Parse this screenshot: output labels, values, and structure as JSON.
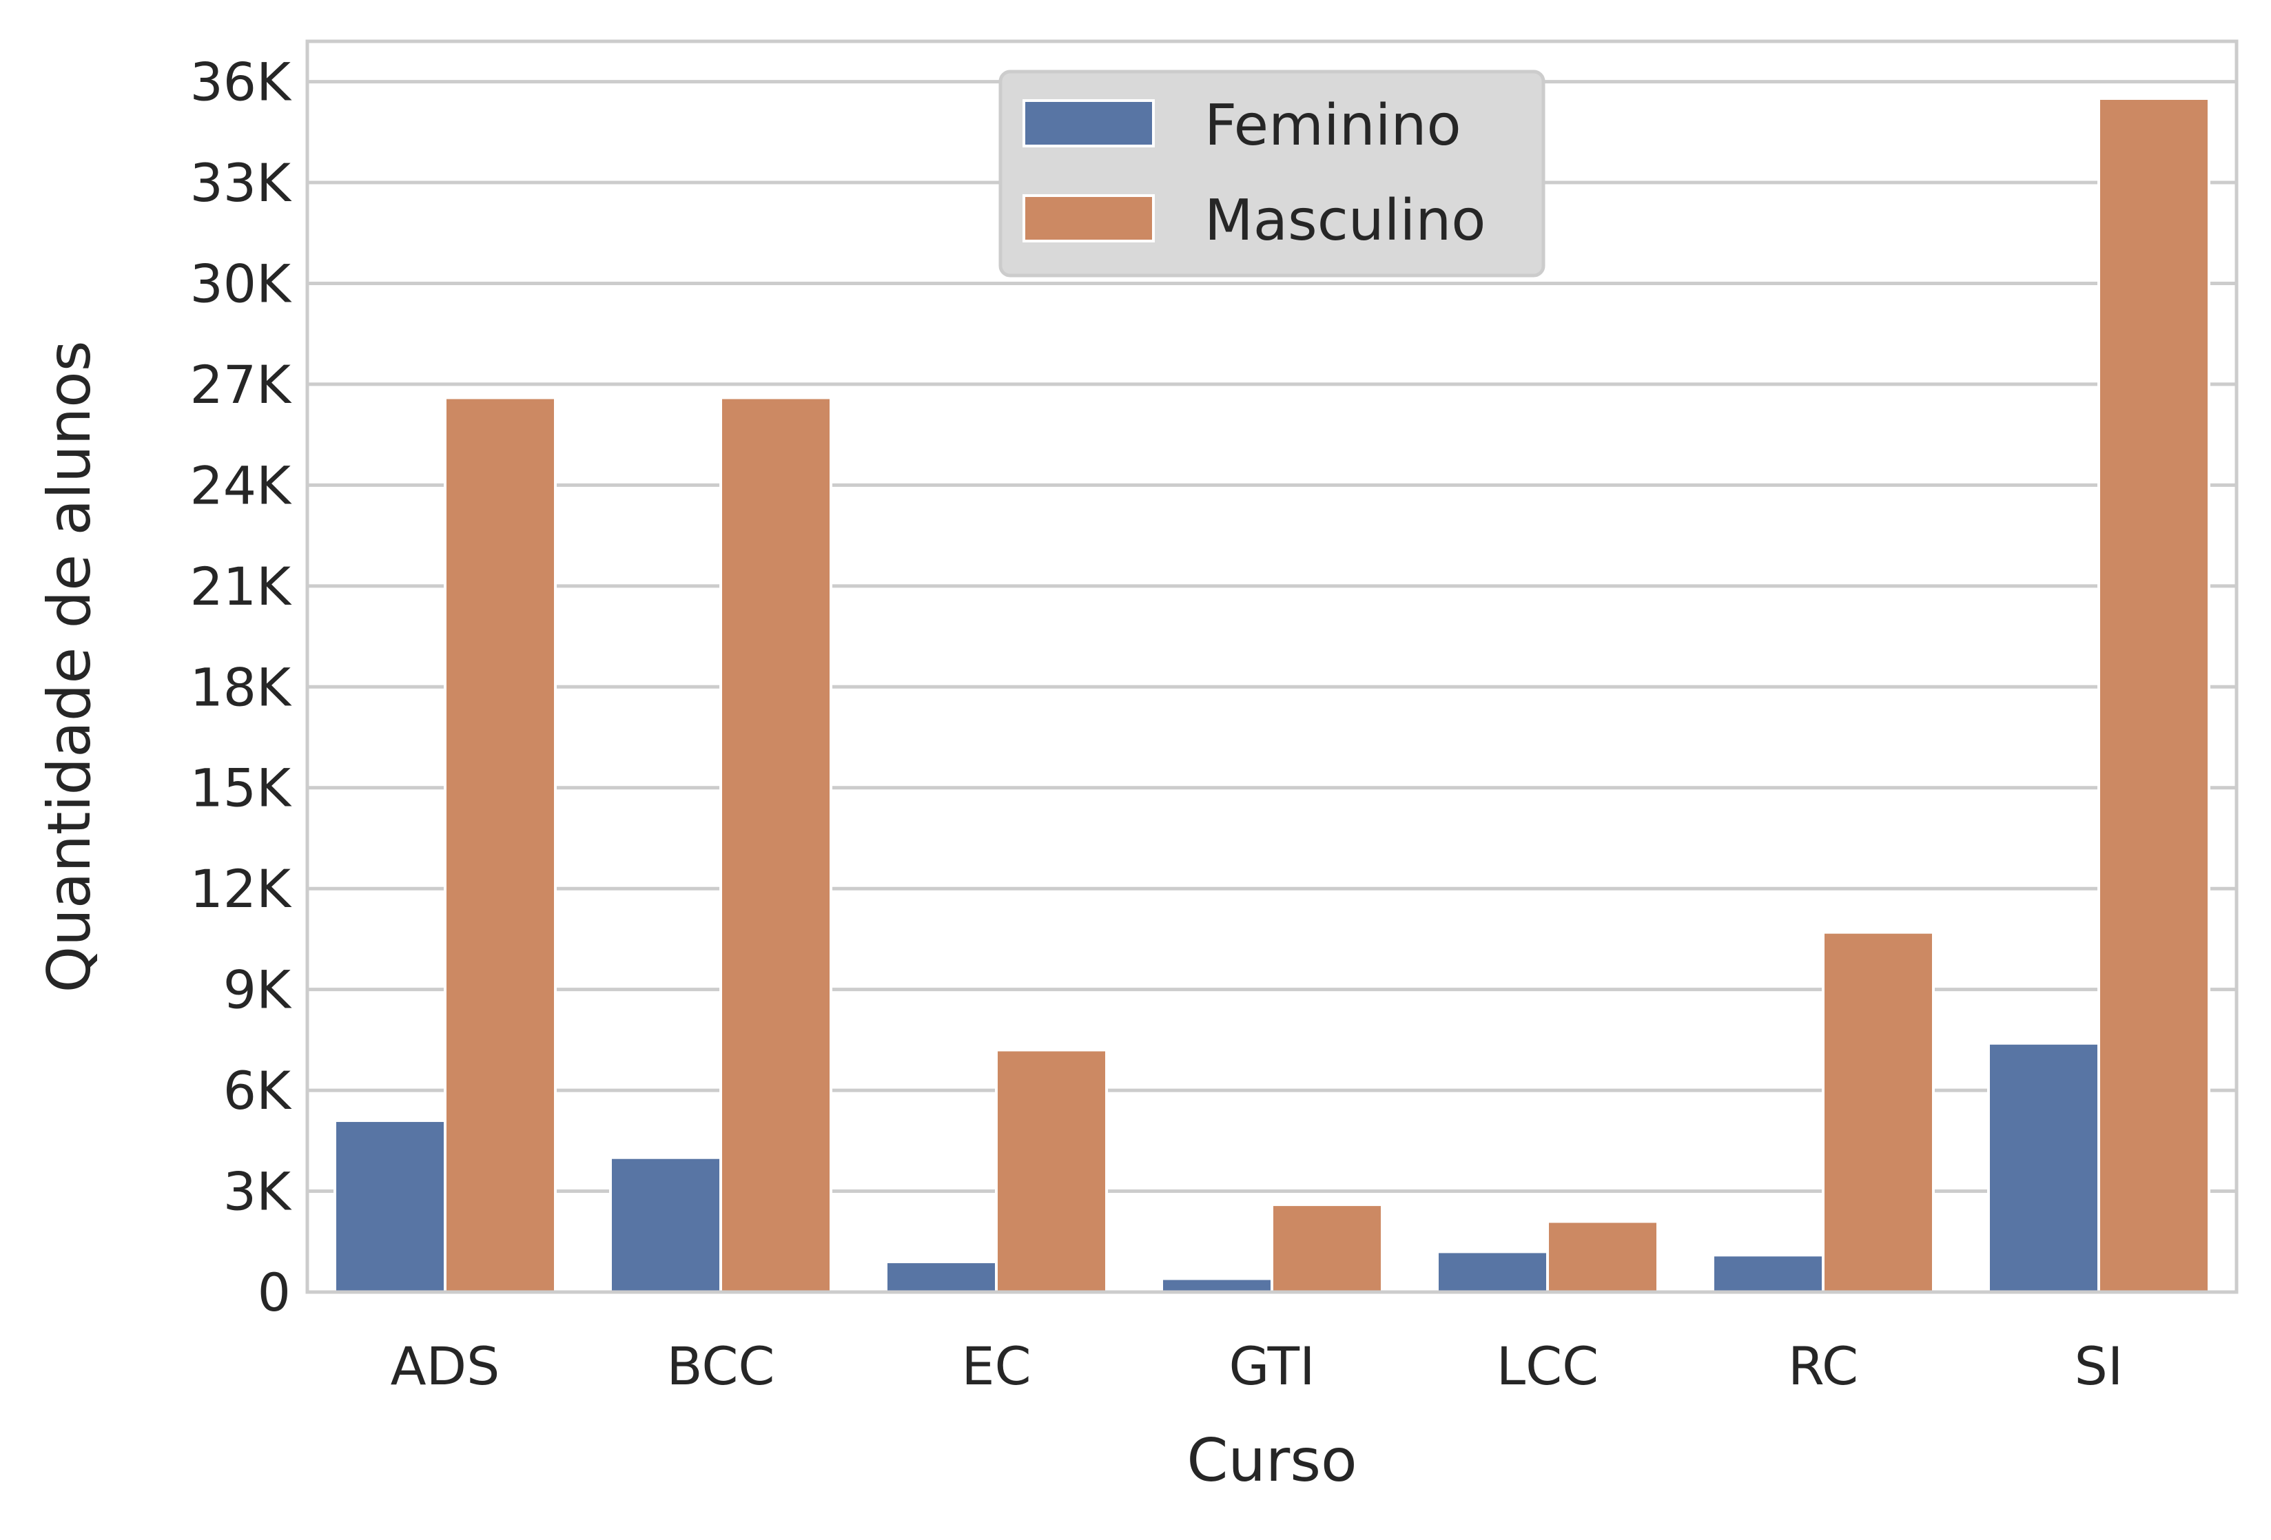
{
  "chart_data": {
    "type": "bar",
    "title": "",
    "xlabel": "Curso",
    "ylabel": "Quantidade de alunos",
    "categories": [
      "ADS",
      "BCC",
      "EC",
      "GTI",
      "LCC",
      "RC",
      "SI"
    ],
    "series": [
      {
        "name": "Feminino",
        "color": "#5875a4",
        "values": [
          5100,
          4000,
          900,
          400,
          1200,
          1100,
          7400
        ]
      },
      {
        "name": "Masculino",
        "color": "#cc8963",
        "values": [
          26600,
          26600,
          7200,
          2600,
          2100,
          10700,
          35500
        ]
      }
    ],
    "ylim": [
      0,
      37200
    ],
    "yticks": [
      0,
      3000,
      6000,
      9000,
      12000,
      15000,
      18000,
      21000,
      24000,
      27000,
      30000,
      33000,
      36000
    ],
    "ytick_labels": [
      "0",
      "3K",
      "6K",
      "9K",
      "12K",
      "15K",
      "18K",
      "21K",
      "24K",
      "27K",
      "30K",
      "33K",
      "36K"
    ],
    "grid": "horizontal",
    "legend_position": "top-center"
  }
}
